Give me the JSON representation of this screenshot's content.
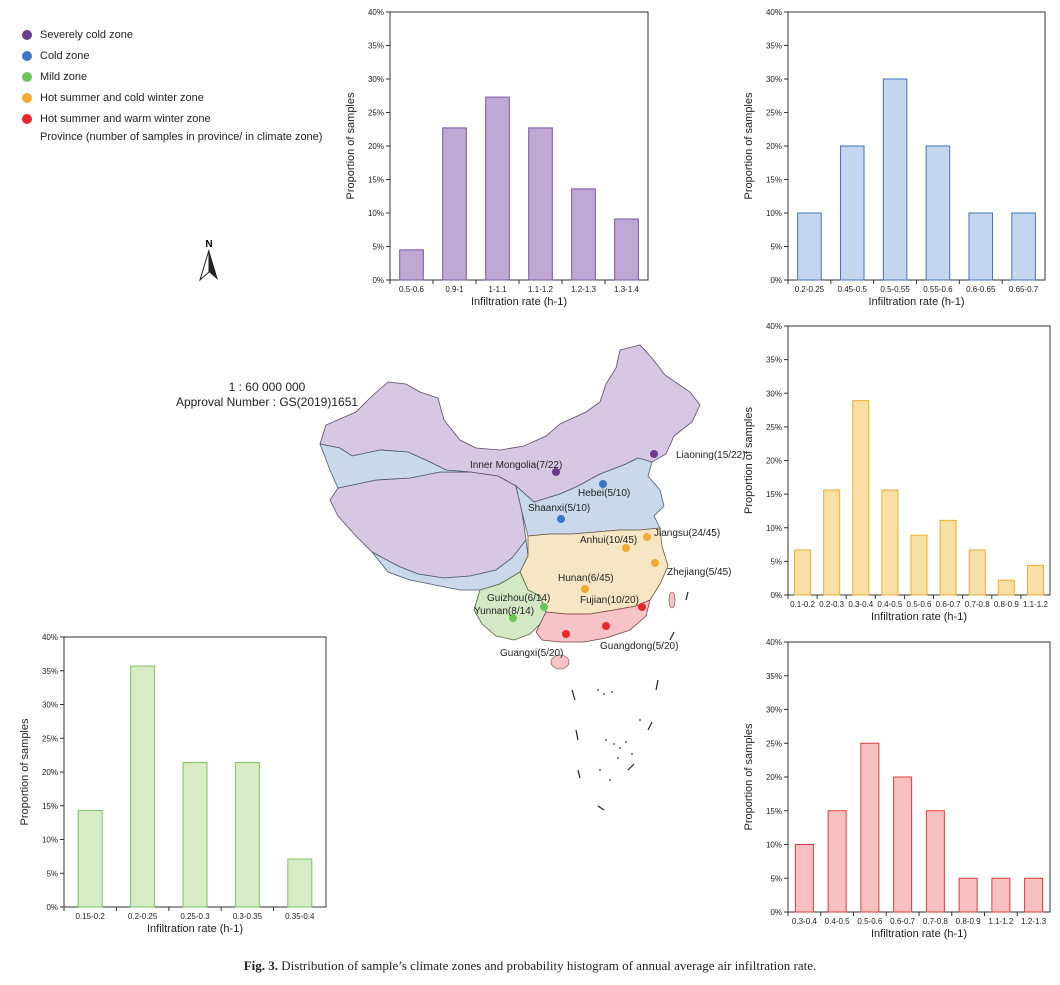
{
  "legend": {
    "items": [
      {
        "label": "Severely cold zone",
        "color": "#6b3a8c"
      },
      {
        "label": "Cold zone",
        "color": "#3f74c0"
      },
      {
        "label": "Mild zone",
        "color": "#6ec45a"
      },
      {
        "label": "Hot summer and cold winter zone",
        "color": "#f2a930"
      },
      {
        "label": "Hot summer and warm winter zone",
        "color": "#e8282c"
      }
    ],
    "note": "Province (number of samples in province/ in climate zone)"
  },
  "map": {
    "scale": "1 : 60 000 000",
    "approval": "Approval Number : GS(2019)1651",
    "north_label": "N",
    "provinces": [
      {
        "label": "Inner Mongolia(7/22)",
        "zone": 0
      },
      {
        "label": "Liaoning(15/22)",
        "zone": 0
      },
      {
        "label": "Hebei(5/10)",
        "zone": 1
      },
      {
        "label": "Shaanxi(5/10)",
        "zone": 1
      },
      {
        "label": "Jiangsu(24/45)",
        "zone": 3
      },
      {
        "label": "Anhui(10/45)",
        "zone": 3
      },
      {
        "label": "Zhejiang(5/45)",
        "zone": 3
      },
      {
        "label": "Hunan(6/45)",
        "zone": 3
      },
      {
        "label": "Fujian(10/20)",
        "zone": 4
      },
      {
        "label": "Guizhou(6/14)",
        "zone": 2
      },
      {
        "label": "Yunnan(8/14)",
        "zone": 2
      },
      {
        "label": "Guangxi(5/20)",
        "zone": 4
      },
      {
        "label": "Guangdong(5/20)",
        "zone": 4
      }
    ]
  },
  "caption": {
    "label": "Fig. 3.",
    "text": "Distribution of sample’s climate zones and probability histogram of annual average air infiltration rate."
  },
  "chart_data": [
    {
      "id": "severely-cold",
      "type": "bar",
      "fill": "#bfa8d4",
      "stroke": "#7a52a8",
      "categories": [
        "0.5-0.6",
        "0.9-1",
        "1-1.1",
        "1.1-1.2",
        "1.2-1.3",
        "1.3-1.4"
      ],
      "values": [
        4.5,
        22.7,
        27.3,
        22.7,
        13.6,
        9.1
      ],
      "xlabel": "Infiltration rate (h-1)",
      "ylabel": "Proportion of samples",
      "ylim": [
        0,
        40
      ],
      "yticks": [
        "0%",
        "5%",
        "10%",
        "15%",
        "20%",
        "25%",
        "30%",
        "35%",
        "40%"
      ]
    },
    {
      "id": "cold",
      "type": "bar",
      "fill": "#c5d7ee",
      "stroke": "#3f74c0",
      "categories": [
        "0.2-0.25",
        "0.45-0.5",
        "0.5-0.55",
        "0.55-0.6",
        "0.6-0.65",
        "0.65-0.7"
      ],
      "values": [
        10,
        20,
        30,
        20,
        10,
        10
      ],
      "xlabel": "Infiltration rate (h-1)",
      "ylabel": "Proportion of samples",
      "ylim": [
        0,
        40
      ],
      "yticks": [
        "0%",
        "5%",
        "10%",
        "15%",
        "20%",
        "25%",
        "30%",
        "35%",
        "40%"
      ]
    },
    {
      "id": "hot-summer-cold-winter",
      "type": "bar",
      "fill": "#f8dfa4",
      "stroke": "#f0ac2e",
      "categories": [
        "0.1-0.2",
        "0.2-0.3",
        "0.3-0.4",
        "0.4-0.5",
        "0.5-0.6",
        "0.6-0.7",
        "0.7-0.8",
        "0.8-0.9",
        "1.1-1.2"
      ],
      "values": [
        6.7,
        15.6,
        28.9,
        15.6,
        8.9,
        11.1,
        6.7,
        2.2,
        4.4
      ],
      "xlabel": "Infiltration rate (h-1)",
      "ylabel": "Proportion of samples",
      "ylim": [
        0,
        40
      ],
      "yticks": [
        "0%",
        "5%",
        "10%",
        "15%",
        "20%",
        "25%",
        "30%",
        "35%",
        "40%"
      ]
    },
    {
      "id": "mild",
      "type": "bar",
      "fill": "#d6ebc6",
      "stroke": "#7cc45e",
      "categories": [
        "0.15-0.2",
        "0.2-0.25",
        "0.25-0.3",
        "0.3-0.35",
        "0.35-0.4"
      ],
      "values": [
        14.3,
        35.7,
        21.4,
        21.4,
        7.1
      ],
      "xlabel": "Infiltration rate (h-1)",
      "ylabel": "Proportion of samples",
      "ylim": [
        0,
        40
      ],
      "yticks": [
        "0%",
        "5%",
        "10%",
        "15%",
        "20%",
        "25%",
        "30%",
        "35%",
        "40%"
      ]
    },
    {
      "id": "hot-summer-warm-winter",
      "type": "bar",
      "fill": "#f7c1c1",
      "stroke": "#e23a3a",
      "categories": [
        "0.3-0.4",
        "0.4-0.5",
        "0.5-0.6",
        "0.6-0.7",
        "0.7-0.8",
        "0.8-0.9",
        "1.1-1.2",
        "1.2-1.3"
      ],
      "values": [
        10,
        15,
        25,
        20,
        15,
        5,
        5,
        5
      ],
      "xlabel": "Infiltration rate (h-1)",
      "ylabel": "Proportion of samples",
      "ylim": [
        0,
        40
      ],
      "yticks": [
        "0%",
        "5%",
        "10%",
        "15%",
        "20%",
        "25%",
        "30%",
        "35%",
        "40%"
      ]
    }
  ]
}
